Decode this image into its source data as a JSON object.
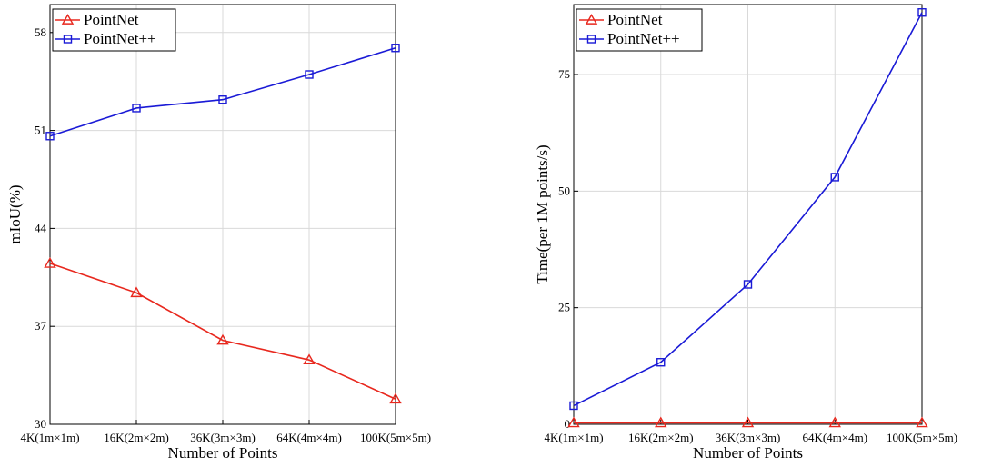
{
  "chart_data": [
    {
      "type": "line",
      "title": "",
      "xlabel": "Number of Points",
      "ylabel": "mIoU(%)",
      "categories": [
        "4K(1m×1m)",
        "16K(2m×2m)",
        "36K(3m×3m)",
        "64K(4m×4m)",
        "100K(5m×5m)"
      ],
      "ylim": [
        30,
        60
      ],
      "yticks": [
        30,
        37,
        44,
        51,
        58
      ],
      "grid": true,
      "legend": "top-left",
      "series": [
        {
          "name": "PointNet",
          "color": "#e8281e",
          "marker": "triangle",
          "values": [
            41.5,
            39.4,
            36.0,
            34.6,
            31.8
          ]
        },
        {
          "name": "PointNet++",
          "color": "#1a1ad6",
          "marker": "square",
          "values": [
            50.6,
            52.6,
            53.2,
            55.0,
            56.9
          ]
        }
      ]
    },
    {
      "type": "line",
      "title": "",
      "xlabel": "Number of Points",
      "ylabel": "Time(per 1M points/s)",
      "categories": [
        "4K(1m×1m)",
        "16K(2m×2m)",
        "36K(3m×3m)",
        "64K(4m×4m)",
        "100K(5m×5m)"
      ],
      "ylim": [
        0,
        90
      ],
      "yticks": [
        0,
        25,
        50,
        75
      ],
      "grid": true,
      "legend": "top-left",
      "series": [
        {
          "name": "PointNet",
          "color": "#e8281e",
          "marker": "triangle",
          "values": [
            0.3,
            0.3,
            0.3,
            0.3,
            0.3
          ]
        },
        {
          "name": "PointNet++",
          "color": "#1a1ad6",
          "marker": "square",
          "values": [
            4.0,
            13.3,
            30.0,
            53.0,
            88.3
          ]
        }
      ]
    }
  ]
}
